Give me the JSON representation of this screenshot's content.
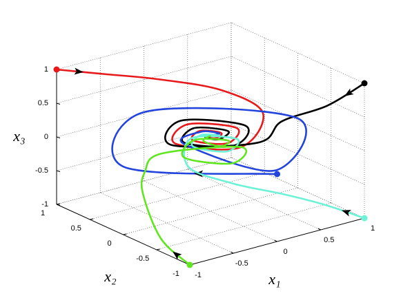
{
  "chart_data": {
    "type": "line3d",
    "xlabel": "x₁",
    "ylabel": "x₂",
    "zlabel": "x₃",
    "xlim": [
      -1,
      1
    ],
    "ylim": [
      -1,
      1
    ],
    "zlim": [
      -1,
      1
    ],
    "xticks": [
      -1,
      -0.5,
      0,
      0.5,
      1
    ],
    "yticks": [
      -1,
      -0.5,
      0,
      0.5,
      1
    ],
    "zticks": [
      -1,
      -0.5,
      0,
      0.5,
      1
    ],
    "grid": true,
    "series": [
      {
        "color": "#e8191b",
        "x": [
          -1,
          -0.5,
          0,
          0.5,
          0.6,
          0,
          -0.4,
          0,
          0.3,
          0,
          -0.2,
          0,
          0.12,
          0,
          -0.05,
          0,
          0
        ],
        "y": [
          1,
          0.9,
          0.8,
          0.5,
          0,
          -0.45,
          0,
          0.35,
          0,
          -0.25,
          0,
          0.16,
          0,
          -0.08,
          0,
          0.03,
          0
        ],
        "z": [
          1,
          0.8,
          0.6,
          0.4,
          0.25,
          0.15,
          0.14,
          0.13,
          0.13,
          0.12,
          0.12,
          0.12,
          0.12,
          0.12,
          0.12,
          0.12,
          0.12
        ]
      },
      {
        "color": "#000000",
        "x": [
          1,
          0.8,
          0.55,
          0.2,
          -0.45,
          0,
          0.4,
          0,
          -0.3,
          0,
          0.2,
          0,
          -0.06,
          0
        ],
        "y": [
          -1,
          -0.7,
          -0.35,
          -0.45,
          0,
          0.45,
          0,
          -0.35,
          0,
          0.25,
          0,
          -0.12,
          0,
          0
        ],
        "z": [
          1,
          0.6,
          0.3,
          0.15,
          0.14,
          0.14,
          0.13,
          0.13,
          0.12,
          0.12,
          0.12,
          0.12,
          0.12,
          0.12
        ]
      },
      {
        "color": "#2244dd",
        "x": [
          0,
          -1,
          0,
          1,
          0,
          -0.3,
          0,
          0.1,
          0
        ],
        "y": [
          -1,
          0,
          1,
          0,
          -0.97,
          0,
          0.15,
          0,
          0
        ],
        "z": [
          0,
          0.01,
          0.02,
          0.03,
          0.04,
          0.1,
          0.11,
          0.12,
          0.12
        ]
      },
      {
        "color": "#6cf2d6",
        "x": [
          1,
          0.6,
          0.2,
          -0.2,
          -0.4,
          0,
          0.3,
          0,
          -0.2,
          0,
          0.1,
          0
        ],
        "y": [
          -1,
          -0.9,
          -0.8,
          -0.6,
          -0.2,
          0.3,
          0,
          -0.25,
          0,
          0.15,
          0,
          0
        ],
        "z": [
          -1,
          -0.7,
          -0.45,
          -0.25,
          -0.12,
          -0.06,
          -0.03,
          0,
          0.03,
          0.06,
          0.09,
          0.12
        ]
      },
      {
        "color": "#5fe61e",
        "x": [
          -1,
          -0.95,
          -0.85,
          -0.6,
          -0.3,
          0.35,
          0,
          -0.3,
          0,
          0.2,
          0,
          -0.08,
          0
        ],
        "y": [
          -1,
          -0.5,
          -0.1,
          0.2,
          0.35,
          0,
          -0.33,
          0,
          0.25,
          0,
          -0.15,
          0,
          0
        ],
        "z": [
          -1,
          -0.85,
          -0.4,
          -0.3,
          -0.2,
          -0.17,
          -0.14,
          -0.1,
          -0.06,
          -0.02,
          0.03,
          0.07,
          0.12
        ]
      }
    ]
  }
}
